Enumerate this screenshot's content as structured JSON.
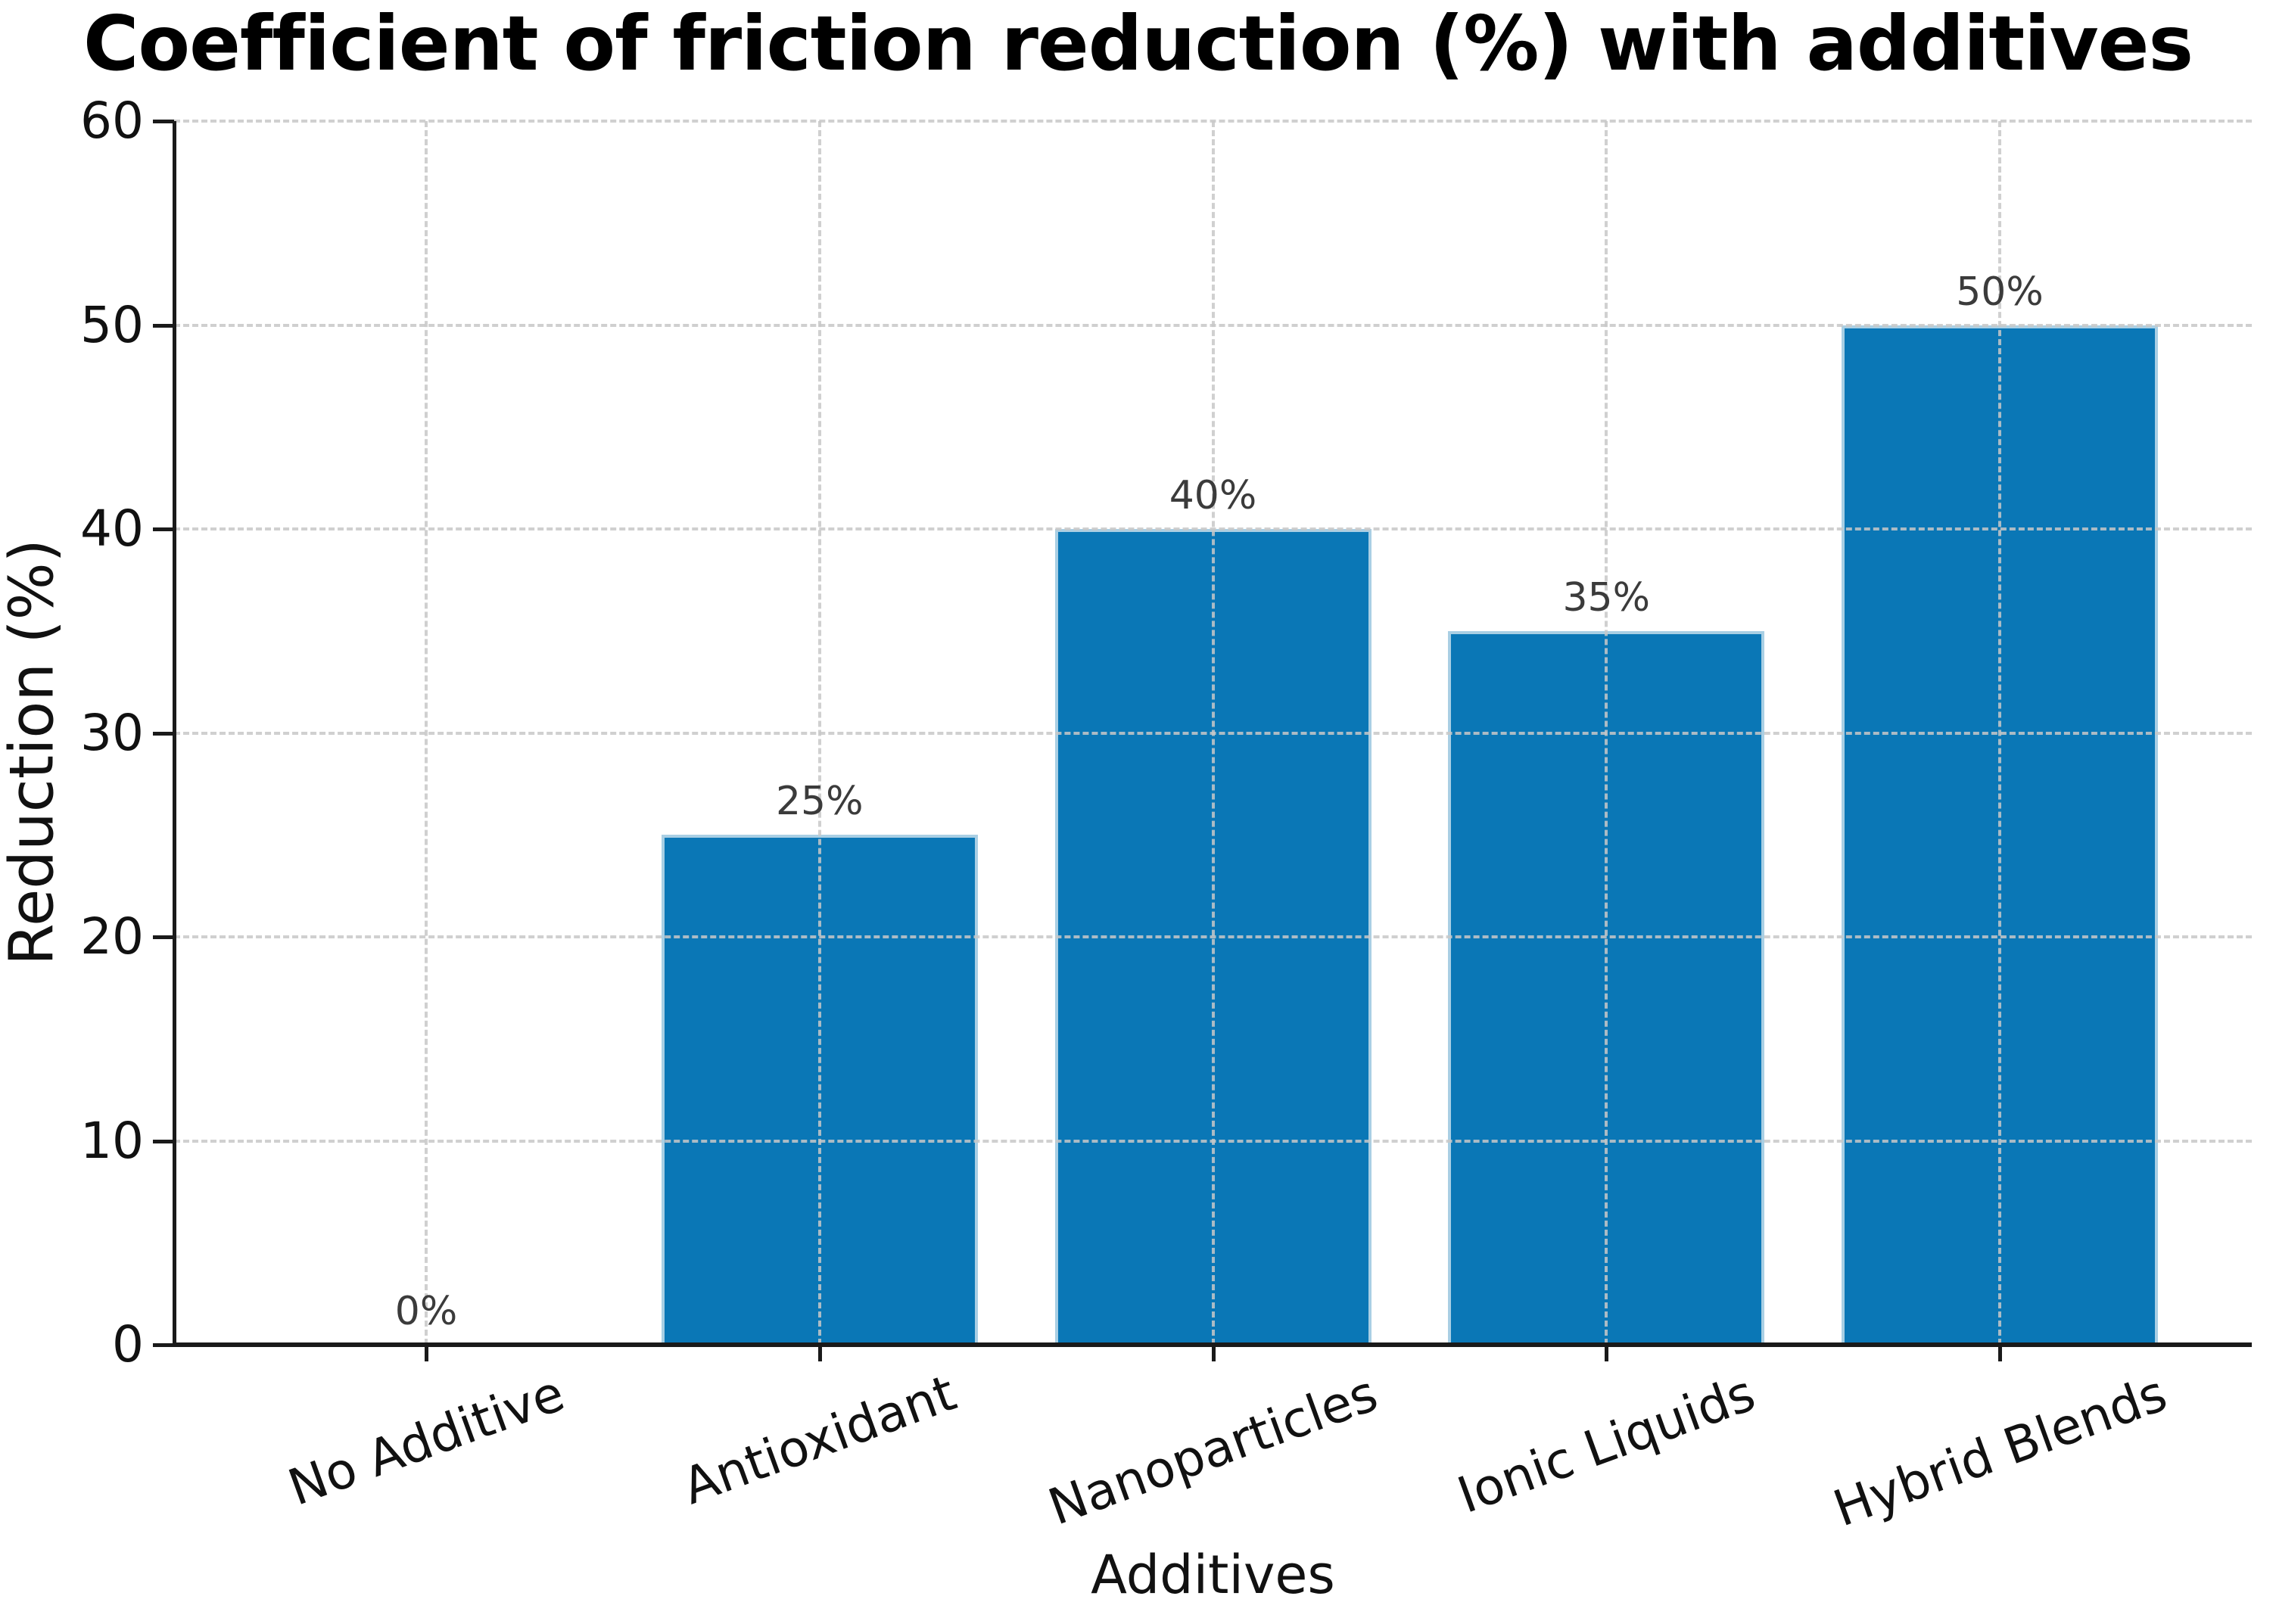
{
  "chart_data": {
    "type": "bar",
    "title": "Coefficient of friction reduction (%) with additives",
    "xlabel": "Additives",
    "ylabel": "Reduction (%)",
    "categories": [
      "No Additive",
      "Antioxidant",
      "Nanoparticles",
      "Ionic Liquids",
      "Hybrid Blends"
    ],
    "values": [
      0,
      25,
      40,
      35,
      50
    ],
    "bar_labels": [
      "0%",
      "25%",
      "40%",
      "35%",
      "50%"
    ],
    "ylim": [
      0,
      60
    ],
    "yticks": [
      0,
      10,
      20,
      30,
      40,
      50,
      60
    ],
    "ytick_labels": [
      "0",
      "10",
      "20",
      "30",
      "40",
      "50",
      "60"
    ],
    "xtick_rotation_deg": 20,
    "grid": true,
    "grid_style": "dashed",
    "grid_color": "#c8c8c8",
    "bar_color": "#0a77b6",
    "bar_edge_color": "#a9cfe4",
    "axis_color": "#1a1a1a",
    "label_color": "#3b3b3b",
    "legend": "none",
    "background_color": "#ffffff"
  }
}
